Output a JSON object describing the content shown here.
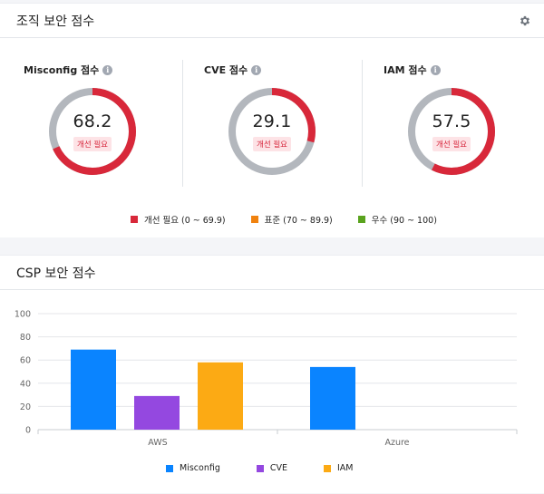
{
  "org": {
    "title": "조직 보안 점수",
    "gauges": [
      {
        "label": "Misconfig 점수",
        "value": "68.2",
        "score": 68.2,
        "badge": "개선 필요",
        "color": "#d8283a"
      },
      {
        "label": "CVE 점수",
        "value": "29.1",
        "score": 29.1,
        "badge": "개선 필요",
        "color": "#d8283a"
      },
      {
        "label": "IAM 점수",
        "value": "57.5",
        "score": 57.5,
        "badge": "개선 필요",
        "color": "#d8283a"
      }
    ],
    "track_color": "#b3b7bd",
    "legend": [
      {
        "label": "개선 필요 (0 ~ 69.9)",
        "color": "#d8283a"
      },
      {
        "label": "표준 (70 ~ 89.9)",
        "color": "#f0820f"
      },
      {
        "label": "우수 (90 ~ 100)",
        "color": "#5aa31e"
      }
    ]
  },
  "csp": {
    "title": "CSP 보안 점수",
    "chart_data": {
      "type": "bar",
      "title": "CSP 보안 점수",
      "categories": [
        "AWS",
        "Azure"
      ],
      "series": [
        {
          "name": "Misconfig",
          "color": "#0a84ff",
          "values": [
            69,
            54
          ]
        },
        {
          "name": "CVE",
          "color": "#9448e0",
          "values": [
            29,
            0
          ]
        },
        {
          "name": "IAM",
          "color": "#fcaa14",
          "values": [
            58,
            0
          ]
        }
      ],
      "yticks": [
        "0",
        "20",
        "40",
        "60",
        "80",
        "100"
      ],
      "ylim": [
        0,
        100
      ],
      "grid": true,
      "legend_position": "bottom"
    }
  }
}
